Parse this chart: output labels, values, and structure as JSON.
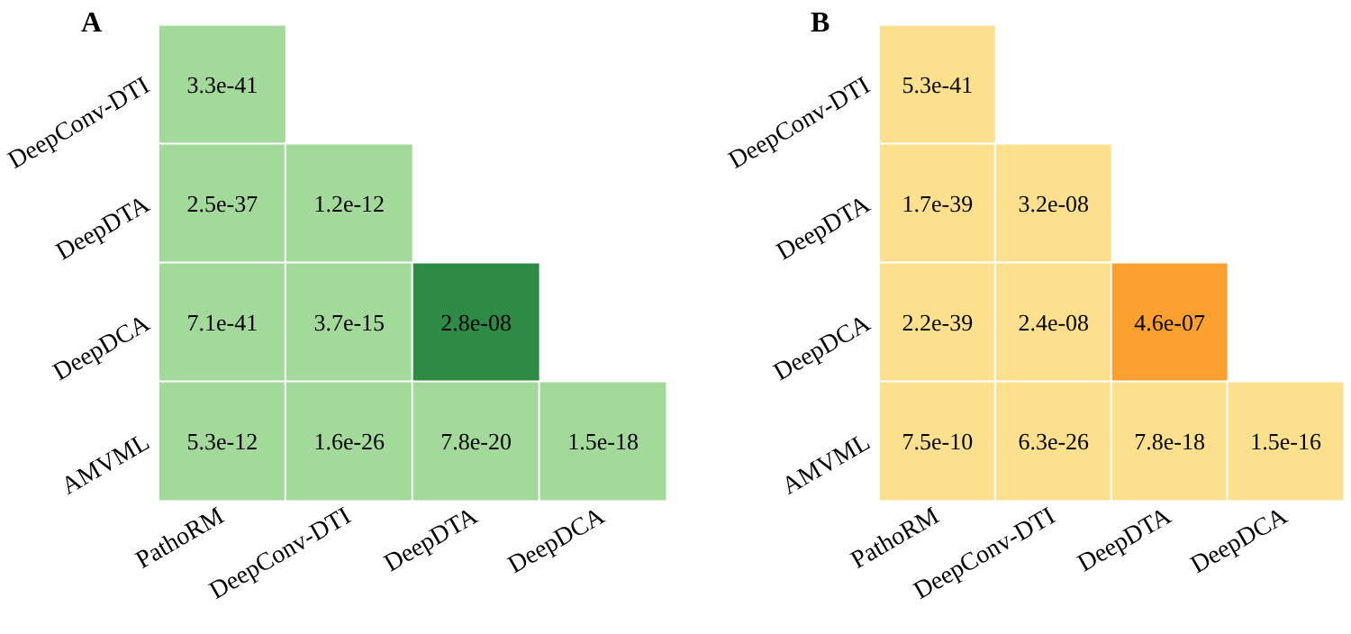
{
  "chart_data": [
    {
      "type": "heatmap",
      "title": "A",
      "data_labels": true,
      "categories": [
        "PathoRM",
        "DeepConv-DTI",
        "DeepDTA",
        "DeepDCA"
      ],
      "y_categories": [
        "DeepConv-DTI",
        "DeepDTA",
        "DeepDCA",
        "AMVML"
      ],
      "cells": [
        [
          3.3e-41,
          null,
          null,
          null
        ],
        [
          2.5e-37,
          1.2e-12,
          null,
          null
        ],
        [
          7.1e-41,
          3.7e-15,
          2.8e-08,
          null
        ],
        [
          5.3e-12,
          1.6e-26,
          7.8e-20,
          1.5e-18
        ]
      ],
      "colors": [
        [
          "#a3d99b",
          null,
          null,
          null
        ],
        [
          "#a3d99b",
          "#a3d99b",
          null,
          null
        ],
        [
          "#a3d99b",
          "#a3d99b",
          "#2e8b46",
          null
        ],
        [
          "#a3d99b",
          "#a3d99b",
          "#a3d99b",
          "#a3d99b"
        ]
      ]
    },
    {
      "type": "heatmap",
      "title": "B",
      "data_labels": true,
      "categories": [
        "PathoRM",
        "DeepConv-DTI",
        "DeepDTA",
        "DeepDCA"
      ],
      "y_categories": [
        "DeepConv-DTI",
        "DeepDTA",
        "DeepDCA",
        "AMVML"
      ],
      "cells": [
        [
          5.3e-41,
          null,
          null,
          null
        ],
        [
          1.7e-39,
          3.2e-08,
          null,
          null
        ],
        [
          2.2e-39,
          2.4e-08,
          4.6e-07,
          null
        ],
        [
          7.5e-10,
          6.3e-26,
          7.8e-18,
          1.5e-16
        ]
      ],
      "colors": [
        [
          "#fde08e",
          null,
          null,
          null
        ],
        [
          "#fde08e",
          "#fde08e",
          null,
          null
        ],
        [
          "#fde08e",
          "#fde08e",
          "#fca130",
          null
        ],
        [
          "#fde08e",
          "#fde08e",
          "#fde08e",
          "#fde08e"
        ]
      ]
    }
  ]
}
